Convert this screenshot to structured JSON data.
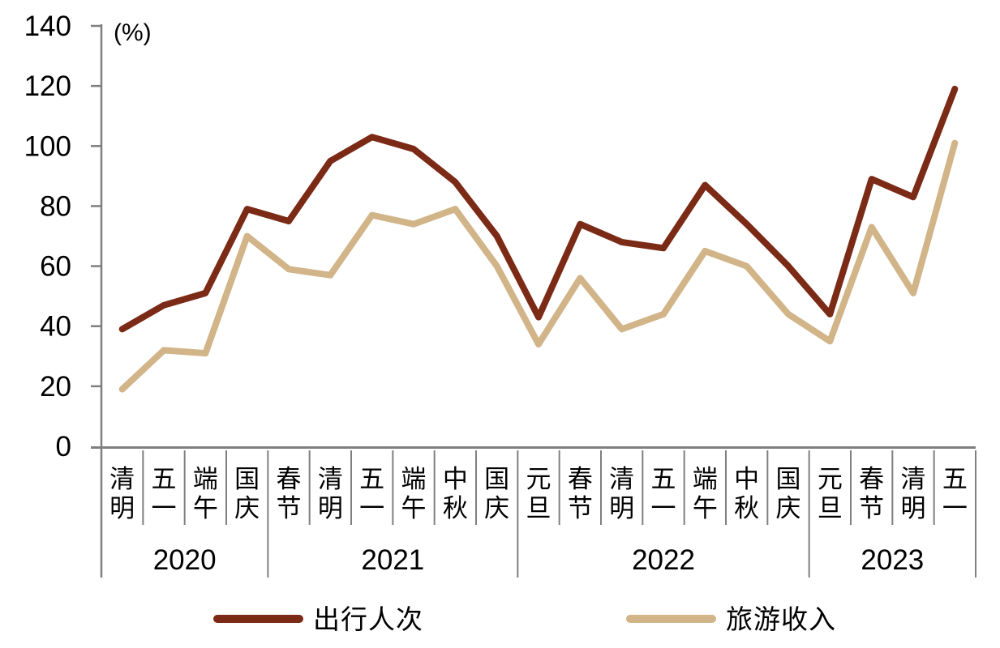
{
  "chart_data": {
    "type": "line",
    "title": "",
    "unit_label": "(%)",
    "ylabel": "",
    "xlabel": "",
    "ylim": [
      0,
      140
    ],
    "ytick_interval": 20,
    "yticks": [
      0,
      20,
      40,
      60,
      80,
      100,
      120,
      140
    ],
    "grid": false,
    "legend_position": "bottom",
    "year_groups": [
      {
        "year": "2020",
        "labels": [
          "清明",
          "五一",
          "端午",
          "国庆"
        ]
      },
      {
        "year": "2021",
        "labels": [
          "春节",
          "清明",
          "五一",
          "端午",
          "中秋",
          "国庆"
        ]
      },
      {
        "year": "2022",
        "labels": [
          "元旦",
          "春节",
          "清明",
          "五一",
          "端午",
          "中秋",
          "国庆"
        ]
      },
      {
        "year": "2023",
        "labels": [
          "元旦",
          "春节",
          "清明",
          "五一"
        ]
      }
    ],
    "categories": [
      "清明",
      "五一",
      "端午",
      "国庆",
      "春节",
      "清明",
      "五一",
      "端午",
      "中秋",
      "国庆",
      "元旦",
      "春节",
      "清明",
      "五一",
      "端午",
      "中秋",
      "国庆",
      "元旦",
      "春节",
      "清明",
      "五一"
    ],
    "series": [
      {
        "name": "出行人次",
        "color": "#7B2A16",
        "values": [
          39,
          47,
          51,
          79,
          75,
          95,
          103,
          99,
          88,
          70,
          43,
          74,
          68,
          66,
          87,
          74,
          60,
          44,
          89,
          83,
          119
        ]
      },
      {
        "name": "旅游收入",
        "color": "#D2B489",
        "values": [
          19,
          32,
          31,
          70,
          59,
          57,
          77,
          74,
          79,
          60,
          34,
          56,
          39,
          44,
          65,
          60,
          44,
          35,
          73,
          51,
          101
        ]
      }
    ]
  },
  "colors": {
    "axis": "#7F7F7F",
    "text": "#000000",
    "background": "#FFFFFF"
  }
}
